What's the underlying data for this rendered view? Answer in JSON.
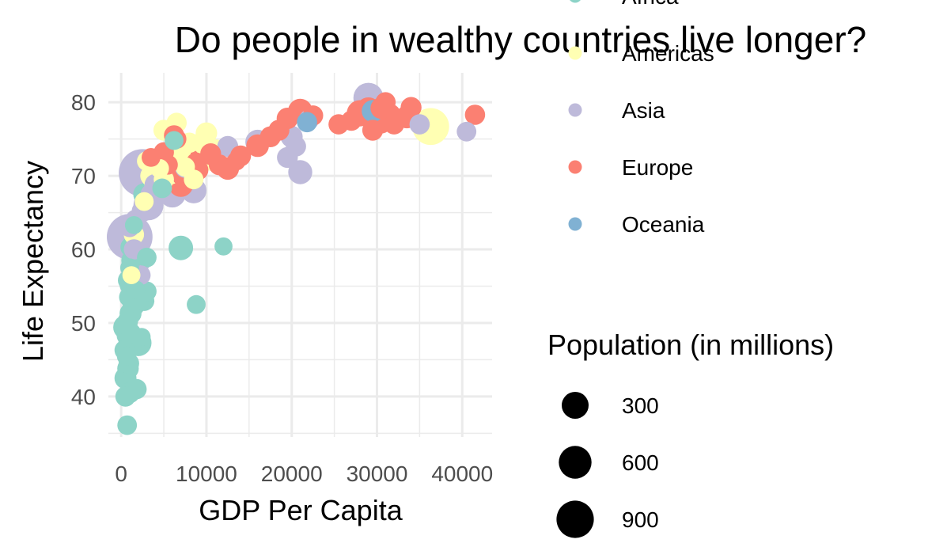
{
  "chart_data": {
    "type": "scatter",
    "title": "Do people in wealthy countries live longer?",
    "xlabel": "GDP Per Capita",
    "ylabel": "Life Expectancy",
    "xlim": [
      -1500,
      43500
    ],
    "ylim": [
      34.5,
      84
    ],
    "x_ticks": [
      0,
      10000,
      20000,
      30000,
      40000
    ],
    "x_tick_labels": [
      "0",
      "10000",
      "20000",
      "30000",
      "40000"
    ],
    "y_ticks": [
      40,
      50,
      60,
      70,
      80
    ],
    "y_tick_labels": [
      "40",
      "50",
      "60",
      "70",
      "80"
    ],
    "grid": true,
    "legend_position": "right",
    "color_legend": {
      "items": [
        {
          "label": "Africa",
          "color": "#8DD3C7"
        },
        {
          "label": "Americas",
          "color": "#FFFFB3"
        },
        {
          "label": "Asia",
          "color": "#BEBADA"
        },
        {
          "label": "Europe",
          "color": "#FB8072"
        },
        {
          "label": "Oceania",
          "color": "#80B1D3"
        }
      ]
    },
    "size_legend": {
      "title": "Population (in millions)",
      "items": [
        {
          "label": "300",
          "value": 300
        },
        {
          "label": "600",
          "value": 600
        },
        {
          "label": "900",
          "value": 900
        }
      ]
    },
    "series": [
      {
        "name": "Africa",
        "color": "#8DD3C7",
        "points": [
          [
            700,
            36.1,
            12
          ],
          [
            500,
            42.5,
            20
          ],
          [
            800,
            43.8,
            18
          ],
          [
            900,
            44.5,
            15
          ],
          [
            600,
            45.5,
            10
          ],
          [
            400,
            46.3,
            14
          ],
          [
            1000,
            47.0,
            25
          ],
          [
            2000,
            47.3,
            40
          ],
          [
            2400,
            48.1,
            8
          ],
          [
            700,
            48.3,
            16
          ],
          [
            1200,
            48.6,
            12
          ],
          [
            500,
            49.4,
            30
          ],
          [
            800,
            50.3,
            14
          ],
          [
            1100,
            51.3,
            20
          ],
          [
            1500,
            52.5,
            22
          ],
          [
            900,
            53.5,
            12
          ],
          [
            1700,
            54.5,
            10
          ],
          [
            1300,
            55.3,
            35
          ],
          [
            800,
            55.8,
            14
          ],
          [
            3000,
            54.3,
            12
          ],
          [
            2700,
            53.0,
            14
          ],
          [
            1000,
            57.5,
            10
          ],
          [
            1200,
            58.5,
            14
          ],
          [
            3000,
            58.9,
            12
          ],
          [
            1100,
            60.3,
            14
          ],
          [
            7000,
            60.2,
            30
          ],
          [
            12000,
            60.4,
            8
          ],
          [
            8800,
            52.5,
            10
          ],
          [
            1500,
            63.3,
            8
          ],
          [
            1800,
            41.0,
            14
          ],
          [
            500,
            40.0,
            14
          ],
          [
            1000,
            40.5,
            16
          ],
          [
            2700,
            67.5,
            20
          ],
          [
            5600,
            71.9,
            22
          ],
          [
            6200,
            74.8,
            10
          ],
          [
            4800,
            68.3,
            12
          ]
        ]
      },
      {
        "name": "Americas",
        "color": "#FFFFB3",
        "points": [
          [
            1200,
            56.5,
            8
          ],
          [
            2700,
            66.5,
            10
          ],
          [
            4000,
            69.0,
            20
          ],
          [
            5000,
            69.5,
            14
          ],
          [
            5800,
            70.3,
            18
          ],
          [
            6000,
            72.4,
            16
          ],
          [
            7000,
            72.8,
            14
          ],
          [
            9000,
            73.2,
            35
          ],
          [
            9800,
            75.0,
            16
          ],
          [
            10500,
            72.5,
            40
          ],
          [
            10000,
            75.8,
            18
          ],
          [
            5000,
            76.2,
            16
          ],
          [
            6500,
            77.2,
            14
          ],
          [
            8000,
            74.5,
            14
          ],
          [
            11000,
            73.5,
            18
          ],
          [
            9000,
            72.0,
            18
          ],
          [
            4500,
            71.0,
            10
          ],
          [
            3500,
            70.0,
            18
          ],
          [
            7500,
            71.2,
            12
          ],
          [
            8500,
            69.5,
            12
          ],
          [
            3000,
            72.0,
            12
          ],
          [
            36300,
            76.7,
            110
          ],
          [
            1500,
            62.0,
            14
          ]
        ]
      },
      {
        "name": "Asia",
        "color": "#BEBADA",
        "points": [
          [
            1000,
            61.7,
            200
          ],
          [
            2500,
            70.4,
            220
          ],
          [
            2500,
            65.2,
            18
          ],
          [
            3200,
            66.0,
            60
          ],
          [
            2700,
            68.4,
            22
          ],
          [
            4000,
            68.8,
            18
          ],
          [
            6000,
            67.5,
            40
          ],
          [
            8500,
            68.0,
            35
          ],
          [
            7500,
            71.1,
            14
          ],
          [
            12500,
            74.0,
            16
          ],
          [
            16000,
            74.6,
            30
          ],
          [
            21000,
            70.5,
            28
          ],
          [
            20500,
            74.0,
            14
          ],
          [
            20000,
            75.3,
            20
          ],
          [
            22000,
            77.6,
            14
          ],
          [
            19500,
            72.5,
            16
          ],
          [
            29000,
            80.6,
            60
          ],
          [
            35000,
            77.0,
            14
          ],
          [
            40500,
            76.0,
            12
          ],
          [
            2200,
            58.4,
            20
          ],
          [
            2300,
            56.5,
            12
          ],
          [
            1500,
            60.0,
            14
          ],
          [
            3500,
            67.5,
            16
          ],
          [
            1000,
            63.0,
            12
          ],
          [
            1700,
            64.0,
            16
          ]
        ]
      },
      {
        "name": "Europe",
        "color": "#FB8072",
        "points": [
          [
            3500,
            72.5,
            10
          ],
          [
            5000,
            73.2,
            14
          ],
          [
            6500,
            75.0,
            12
          ],
          [
            7000,
            68.8,
            30
          ],
          [
            8000,
            72.2,
            18
          ],
          [
            9000,
            70.8,
            16
          ],
          [
            10500,
            73.0,
            16
          ],
          [
            11500,
            71.5,
            16
          ],
          [
            12500,
            71.0,
            22
          ],
          [
            13500,
            72.0,
            10
          ],
          [
            14000,
            72.7,
            16
          ],
          [
            16000,
            74.1,
            22
          ],
          [
            17500,
            75.3,
            16
          ],
          [
            18500,
            76.2,
            16
          ],
          [
            19500,
            77.8,
            18
          ],
          [
            21000,
            78.8,
            30
          ],
          [
            22500,
            78.2,
            14
          ],
          [
            27000,
            77.5,
            14
          ],
          [
            28000,
            78.5,
            38
          ],
          [
            29000,
            79.0,
            30
          ],
          [
            30500,
            79.2,
            18
          ],
          [
            31500,
            78.3,
            20
          ],
          [
            33500,
            78.0,
            22
          ],
          [
            32000,
            77.0,
            14
          ],
          [
            34000,
            79.3,
            16
          ],
          [
            30000,
            78.4,
            36
          ],
          [
            30500,
            77.3,
            22
          ],
          [
            29500,
            76.2,
            16
          ],
          [
            25500,
            77.0,
            14
          ],
          [
            31000,
            80.0,
            14
          ],
          [
            41500,
            78.3,
            14
          ],
          [
            5500,
            71.5,
            12
          ],
          [
            6200,
            75.5,
            14
          ],
          [
            7200,
            70.0,
            16
          ],
          [
            5000,
            71.0,
            16
          ],
          [
            8800,
            71.8,
            14
          ],
          [
            10500,
            72.8,
            12
          ]
        ]
      },
      {
        "name": "Oceania",
        "color": "#80B1D3",
        "points": [
          [
            21800,
            77.3,
            14
          ],
          [
            29500,
            78.8,
            20
          ]
        ]
      }
    ]
  }
}
